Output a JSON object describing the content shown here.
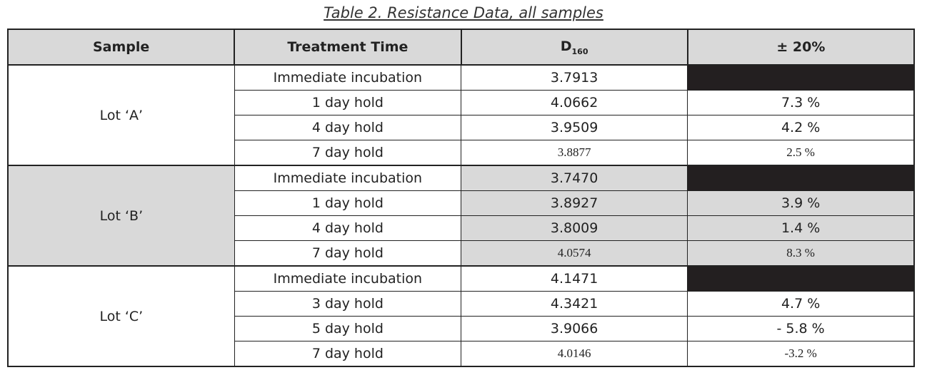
{
  "title": "Table 2.  Resistance Data, all samples",
  "table": {
    "columns": [
      "Sample",
      "Treatment Time",
      "D",
      "± 20%"
    ],
    "d_subscript": "160",
    "groups": [
      {
        "sample": "Lot ‘A’",
        "rows": [
          [
            "Immediate incubation",
            "3.7913"
          ],
          [
            "1 day hold",
            "4.0662",
            "7.3 %"
          ],
          [
            "4 day hold",
            "3.9509",
            "4.2 %"
          ],
          [
            "7 day hold",
            "3.8877",
            "2.5 %"
          ]
        ]
      },
      {
        "sample": "Lot ‘B’",
        "rows": [
          [
            "Immediate incubation",
            "3.7470"
          ],
          [
            "1 day hold",
            "3.8927",
            "3.9 %"
          ],
          [
            "4 day hold",
            "3.8009",
            "1.4 %"
          ],
          [
            "7 day hold",
            "4.0574",
            "8.3 %"
          ]
        ]
      },
      {
        "sample": "Lot ‘C’",
        "rows": [
          [
            "Immediate incubation",
            "4.1471"
          ],
          [
            "3 day hold",
            "4.3421",
            "4.7 %"
          ],
          [
            "5 day hold",
            "3.9066",
            "- 5.8 %"
          ],
          [
            "7 day hold",
            "4.0146",
            "-3.2 %"
          ]
        ]
      }
    ]
  }
}
